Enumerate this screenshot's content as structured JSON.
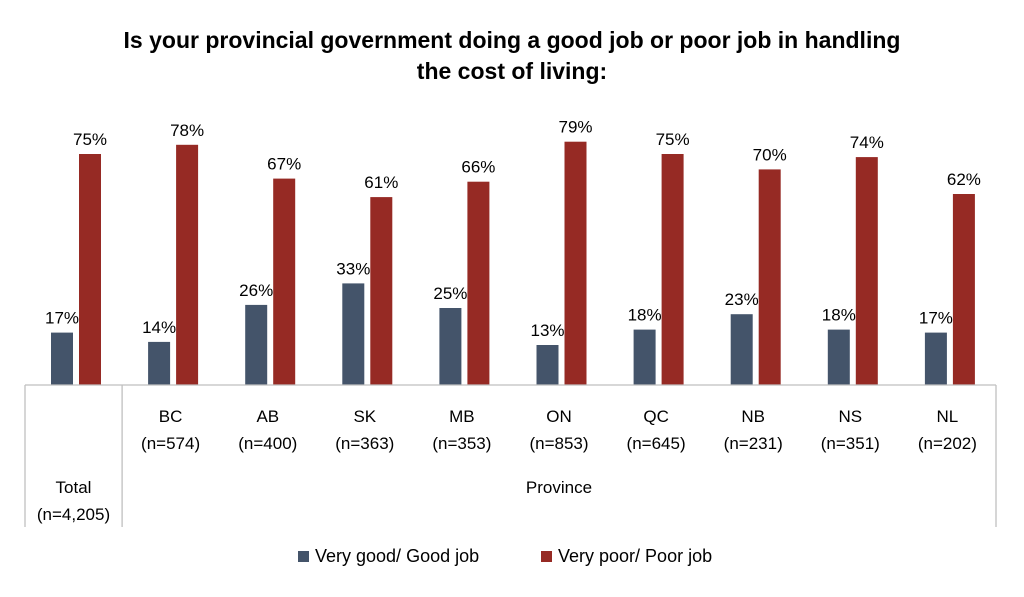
{
  "chart_data": {
    "type": "bar",
    "title": "Is your provincial government doing a good job or poor job in handling the cost of living:",
    "title_lines": [
      "Is your provincial government doing a good job or poor job in handling",
      "the cost of living:"
    ],
    "categories": [
      "Total (n=4,205)",
      "BC (n=574)",
      "AB (n=400)",
      "SK (n=363)",
      "MB (n=353)",
      "ON (n=853)",
      "QC (n=645)",
      "NB (n=231)",
      "NS (n=351)",
      "NL (n=202)"
    ],
    "category_lines": [
      [
        "Total",
        "(n=4,205)"
      ],
      [
        "BC",
        "(n=574)"
      ],
      [
        "AB",
        "(n=400)"
      ],
      [
        "SK",
        "(n=363)"
      ],
      [
        "MB",
        "(n=353)"
      ],
      [
        "ON",
        "(n=853)"
      ],
      [
        "QC",
        "(n=645)"
      ],
      [
        "NB",
        "(n=231)"
      ],
      [
        "NS",
        "(n=351)"
      ],
      [
        "NL",
        "(n=202)"
      ]
    ],
    "group_label": "Province",
    "series": [
      {
        "name": "Very good/ Good job",
        "color": "#44546A",
        "values": [
          17,
          14,
          26,
          33,
          25,
          13,
          18,
          23,
          18,
          17
        ],
        "labels": [
          "17%",
          "14%",
          "26%",
          "33%",
          "25%",
          "13%",
          "18%",
          "23%",
          "18%",
          "17%"
        ]
      },
      {
        "name": "Very poor/ Poor job",
        "color": "#962A24",
        "values": [
          75,
          78,
          67,
          61,
          66,
          79,
          75,
          70,
          74,
          62
        ],
        "labels": [
          "75%",
          "78%",
          "67%",
          "61%",
          "66%",
          "79%",
          "75%",
          "70%",
          "74%",
          "62%"
        ]
      }
    ],
    "ylim": [
      0,
      100
    ],
    "value_unit": "%",
    "grid": false,
    "legend_position": "bottom",
    "axis_line_color": "#BFBFBF"
  }
}
